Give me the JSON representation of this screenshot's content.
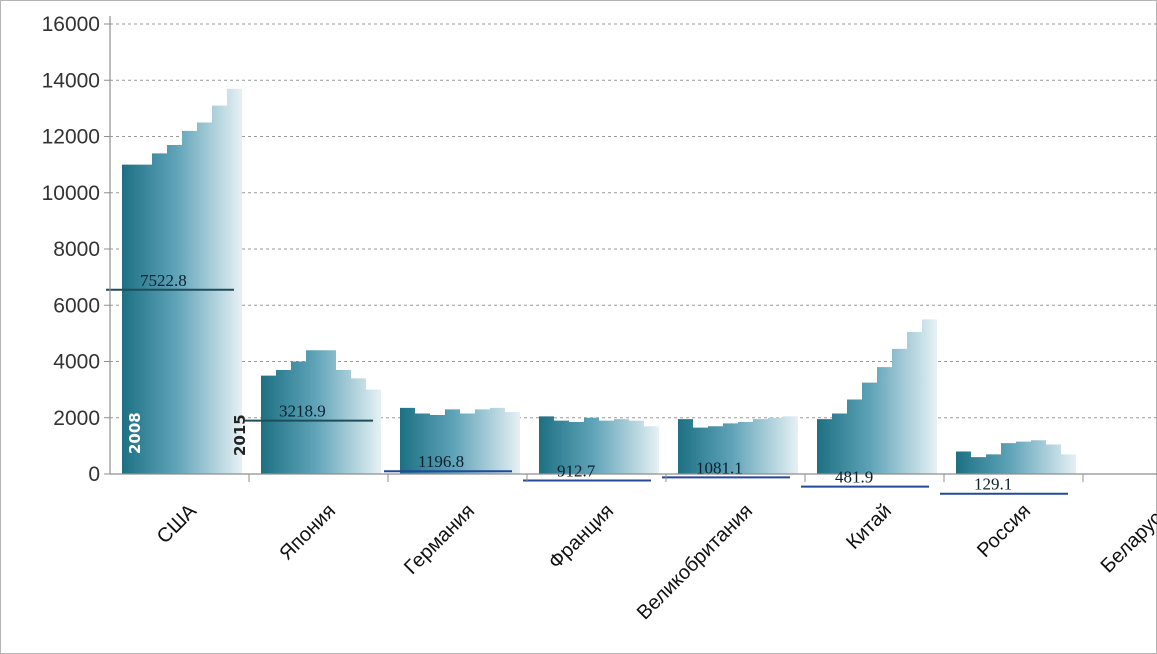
{
  "chart_data": {
    "type": "bar",
    "title": "",
    "xlabel": "",
    "ylabel": "",
    "ylim": [
      0,
      16000
    ],
    "yticks": [
      0,
      2000,
      4000,
      6000,
      8000,
      10000,
      12000,
      14000,
      16000
    ],
    "grid": true,
    "year_labels": {
      "start": "2008",
      "end": "2015"
    },
    "colors": {
      "dark": "#1d7083",
      "light": "#e6f1f5",
      "avg_line_dark": "#1e4d5b",
      "avg_line_blue": "#24489a",
      "grid": "#9a9a9a",
      "axis": "#8f8f8f"
    },
    "categories": [
      {
        "name": "США",
        "values": [
          11000,
          11000,
          11400,
          11700,
          12200,
          12500,
          13100,
          13700
        ],
        "avg_value": 6550,
        "avg_label": "7522.8"
      },
      {
        "name": "Япония",
        "values": [
          3500,
          3700,
          4000,
          4400,
          4400,
          3700,
          3400,
          3000
        ],
        "avg_value": 1900,
        "avg_label": "3218.9"
      },
      {
        "name": "Германия",
        "values": [
          2350,
          2150,
          2100,
          2300,
          2150,
          2300,
          2350,
          2200
        ],
        "avg_value": 100,
        "avg_label": "1196.8"
      },
      {
        "name": "Франция",
        "values": [
          2050,
          1900,
          1850,
          2000,
          1900,
          1950,
          1900,
          1700
        ],
        "avg_value": -230,
        "avg_label": "912.7"
      },
      {
        "name": "Великобритания",
        "values": [
          1950,
          1650,
          1700,
          1800,
          1850,
          1950,
          2000,
          2050
        ],
        "avg_value": -120,
        "avg_label": "1081.1"
      },
      {
        "name": "Китай",
        "values": [
          1950,
          2150,
          2650,
          3250,
          3800,
          4450,
          5050,
          5500
        ],
        "avg_value": -450,
        "avg_label": "481.9"
      },
      {
        "name": "Россия",
        "values": [
          800,
          600,
          700,
          1100,
          1150,
          1200,
          1050,
          700
        ],
        "avg_value": -700,
        "avg_label": "129.1"
      },
      {
        "name": "Беларусь",
        "values": [],
        "avg_value": null,
        "avg_label": ""
      }
    ]
  }
}
